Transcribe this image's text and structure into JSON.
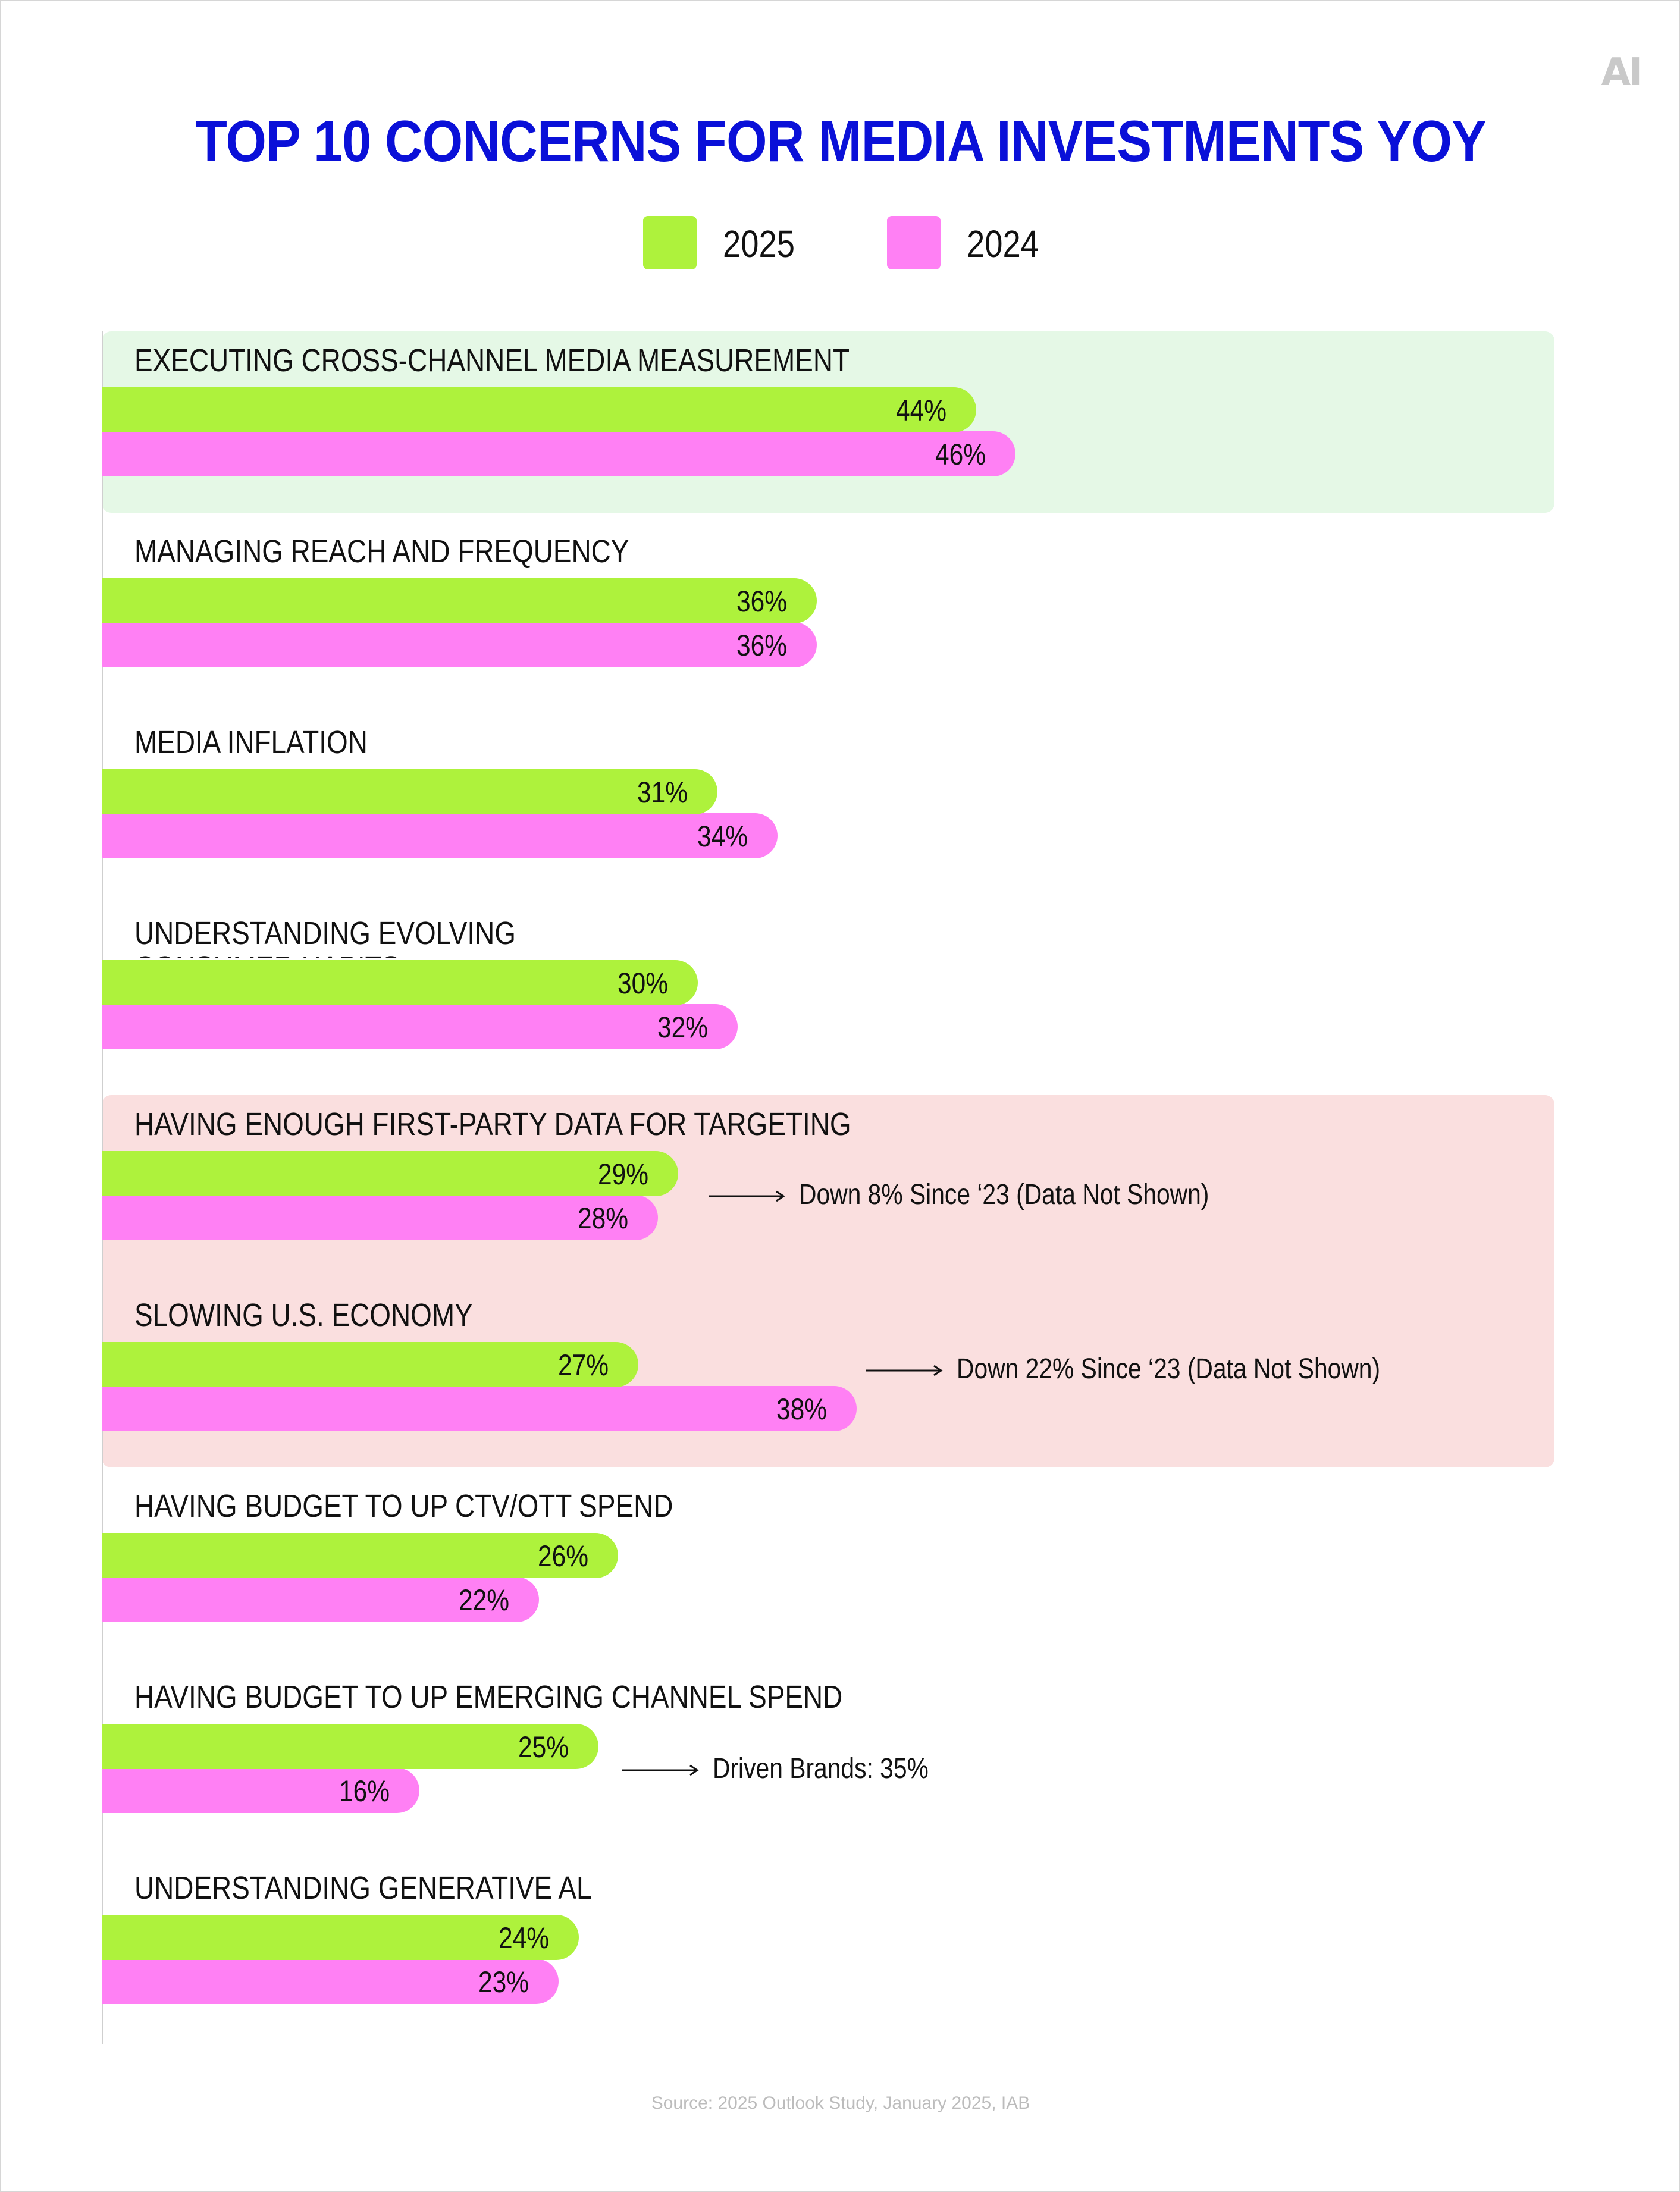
{
  "logo_text": "AI",
  "colors": {
    "series_2025": "#aef23c",
    "series_2024": "#ff80f4",
    "title": "#0a10d8",
    "highlight_green": "#e5f8e6",
    "highlight_pink": "#fadfdf"
  },
  "chart_data": {
    "type": "bar",
    "orientation": "horizontal",
    "title": "TOP 10 CONCERNS FOR MEDIA INVESTMENTS YOY",
    "legend": [
      "2025",
      "2024"
    ],
    "legend_position": "top-center",
    "grid": false,
    "xlim": [
      0,
      100
    ],
    "unit": "%",
    "categories": [
      "EXECUTING CROSS-CHANNEL MEDIA MEASUREMENT",
      "MANAGING REACH AND FREQUENCY",
      "MEDIA INFLATION",
      "UNDERSTANDING EVOLVING CONSUMER HABITS",
      "HAVING ENOUGH FIRST-PARTY DATA FOR TARGETING",
      "SLOWING U.S. ECONOMY",
      "HAVING BUDGET TO UP CTV/OTT SPEND",
      "HAVING BUDGET TO UP EMERGING CHANNEL SPEND",
      "UNDERSTANDING GENERATIVE AL"
    ],
    "series": [
      {
        "name": "2025",
        "values": [
          44,
          36,
          31,
          30,
          29,
          27,
          26,
          25,
          24
        ]
      },
      {
        "name": "2024",
        "values": [
          46,
          36,
          34,
          32,
          28,
          38,
          22,
          16,
          23
        ]
      }
    ],
    "value_labels": {
      "2025": [
        "44%",
        "36%",
        "31%",
        "30%",
        "29%",
        "27%",
        "26%",
        "25%",
        "24%"
      ],
      "2024": [
        "46%",
        "36%",
        "34%",
        "32%",
        "28%",
        "38%",
        "22%",
        "16%",
        "23%"
      ]
    },
    "annotations": [
      {
        "category_index": 4,
        "text": "Down 8% Since ‘23 (Data Not Shown)"
      },
      {
        "category_index": 5,
        "text": "Down 22% Since ‘23 (Data Not Shown)"
      },
      {
        "category_index": 7,
        "text": "Driven Brands: 35%"
      }
    ],
    "highlights": [
      {
        "start_index": 0,
        "end_index": 0,
        "color": "green"
      },
      {
        "start_index": 4,
        "end_index": 5,
        "color": "pink"
      }
    ]
  },
  "source": "Source: 2025 Outlook Study, January 2025, IAB"
}
